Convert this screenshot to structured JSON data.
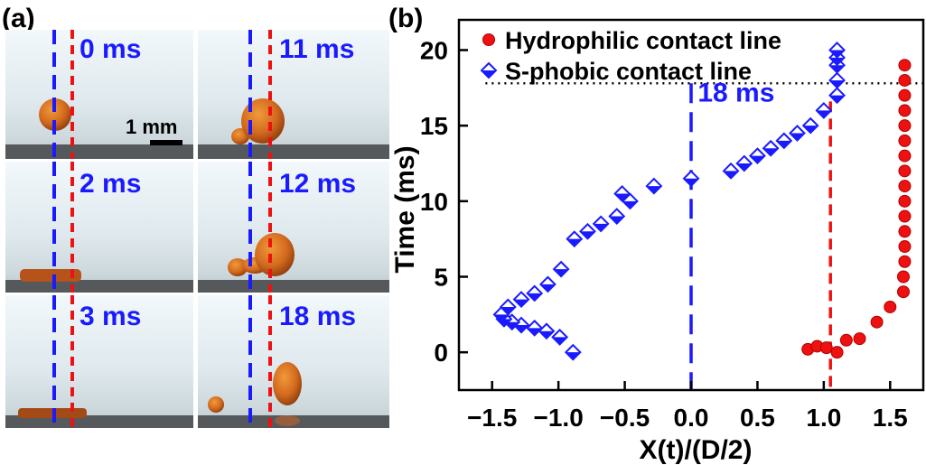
{
  "panel_a": {
    "label": "(a)",
    "scale_bar_label": "1 mm",
    "frames": [
      {
        "time": "0 ms"
      },
      {
        "time": "11 ms"
      },
      {
        "time": "2 ms"
      },
      {
        "time": "12 ms"
      },
      {
        "time": "3 ms"
      },
      {
        "time": "18 ms"
      }
    ]
  },
  "colors": {
    "hydrophilic": "#ee1111",
    "sphobic": "#1a1aff",
    "sphobic_fill": "#ffffff",
    "droplet": "#d2691e",
    "substrate": "#5a5a5a",
    "background_photo": "#e4eef2"
  },
  "chart_data": {
    "type": "scatter",
    "panel_label": "(b)",
    "xlabel": "X(t)/(D/2)",
    "ylabel": "Time (ms)",
    "xlim": [
      -1.75,
      1.75
    ],
    "ylim": [
      -2.5,
      22
    ],
    "xticks": [
      -1.5,
      -1.0,
      -0.5,
      0.0,
      0.5,
      1.0,
      1.5
    ],
    "xtick_labels": [
      "−1.5",
      "−1.0",
      "−0.5",
      "0.0",
      "0.5",
      "1.0",
      "1.5"
    ],
    "yticks": [
      0,
      5,
      10,
      15,
      20
    ],
    "ytick_labels": [
      "0",
      "5",
      "10",
      "15",
      "20"
    ],
    "legend_position": "top-right",
    "grid": false,
    "annotation": {
      "text": "18 ms",
      "y": 17.8
    },
    "reference_lines": [
      {
        "x": 0.0,
        "style": "dashed",
        "color": "blue"
      },
      {
        "x": 1.05,
        "style": "dashed",
        "color": "red"
      }
    ],
    "series": [
      {
        "name": "Hydrophilic contact line",
        "marker": "circle",
        "points": [
          [
            0.88,
            0.2
          ],
          [
            0.95,
            0.4
          ],
          [
            1.02,
            0.3
          ],
          [
            1.1,
            0.0
          ],
          [
            1.17,
            0.8
          ],
          [
            1.27,
            0.9
          ],
          [
            1.4,
            2.0
          ],
          [
            1.5,
            3.0
          ],
          [
            1.6,
            4.0
          ],
          [
            1.6,
            5.0
          ],
          [
            1.61,
            6.0
          ],
          [
            1.61,
            7.0
          ],
          [
            1.61,
            8.0
          ],
          [
            1.61,
            9.0
          ],
          [
            1.61,
            10.0
          ],
          [
            1.61,
            11.0
          ],
          [
            1.61,
            12.0
          ],
          [
            1.61,
            13.0
          ],
          [
            1.61,
            14.0
          ],
          [
            1.61,
            15.0
          ],
          [
            1.61,
            16.0
          ],
          [
            1.61,
            17.0
          ],
          [
            1.61,
            18.0
          ],
          [
            1.61,
            19.0
          ]
        ]
      },
      {
        "name": "S-phobic contact line",
        "marker": "diamond",
        "points": [
          [
            -0.89,
            0.0
          ],
          [
            -0.99,
            1.0
          ],
          [
            -1.09,
            1.4
          ],
          [
            -1.18,
            1.6
          ],
          [
            -1.28,
            1.8
          ],
          [
            -1.35,
            2.0
          ],
          [
            -1.41,
            2.2
          ],
          [
            -1.43,
            2.5
          ],
          [
            -1.38,
            3.0
          ],
          [
            -1.28,
            3.5
          ],
          [
            -1.18,
            3.9
          ],
          [
            -1.08,
            4.5
          ],
          [
            -0.98,
            5.5
          ],
          [
            -0.88,
            7.5
          ],
          [
            -0.78,
            8.0
          ],
          [
            -0.68,
            8.5
          ],
          [
            -0.56,
            9.0
          ],
          [
            -0.46,
            10.0
          ],
          [
            -0.52,
            10.5
          ],
          [
            -0.28,
            11.0
          ],
          [
            0.0,
            11.5
          ],
          [
            0.3,
            12.0
          ],
          [
            0.4,
            12.5
          ],
          [
            0.5,
            13.0
          ],
          [
            0.6,
            13.5
          ],
          [
            0.7,
            14.0
          ],
          [
            0.8,
            14.5
          ],
          [
            0.9,
            15.0
          ],
          [
            1.0,
            16.0
          ],
          [
            1.1,
            17.0
          ],
          [
            1.1,
            18.0
          ],
          [
            1.1,
            19.0
          ],
          [
            1.1,
            19.5
          ],
          [
            1.1,
            20.0
          ]
        ]
      }
    ]
  }
}
